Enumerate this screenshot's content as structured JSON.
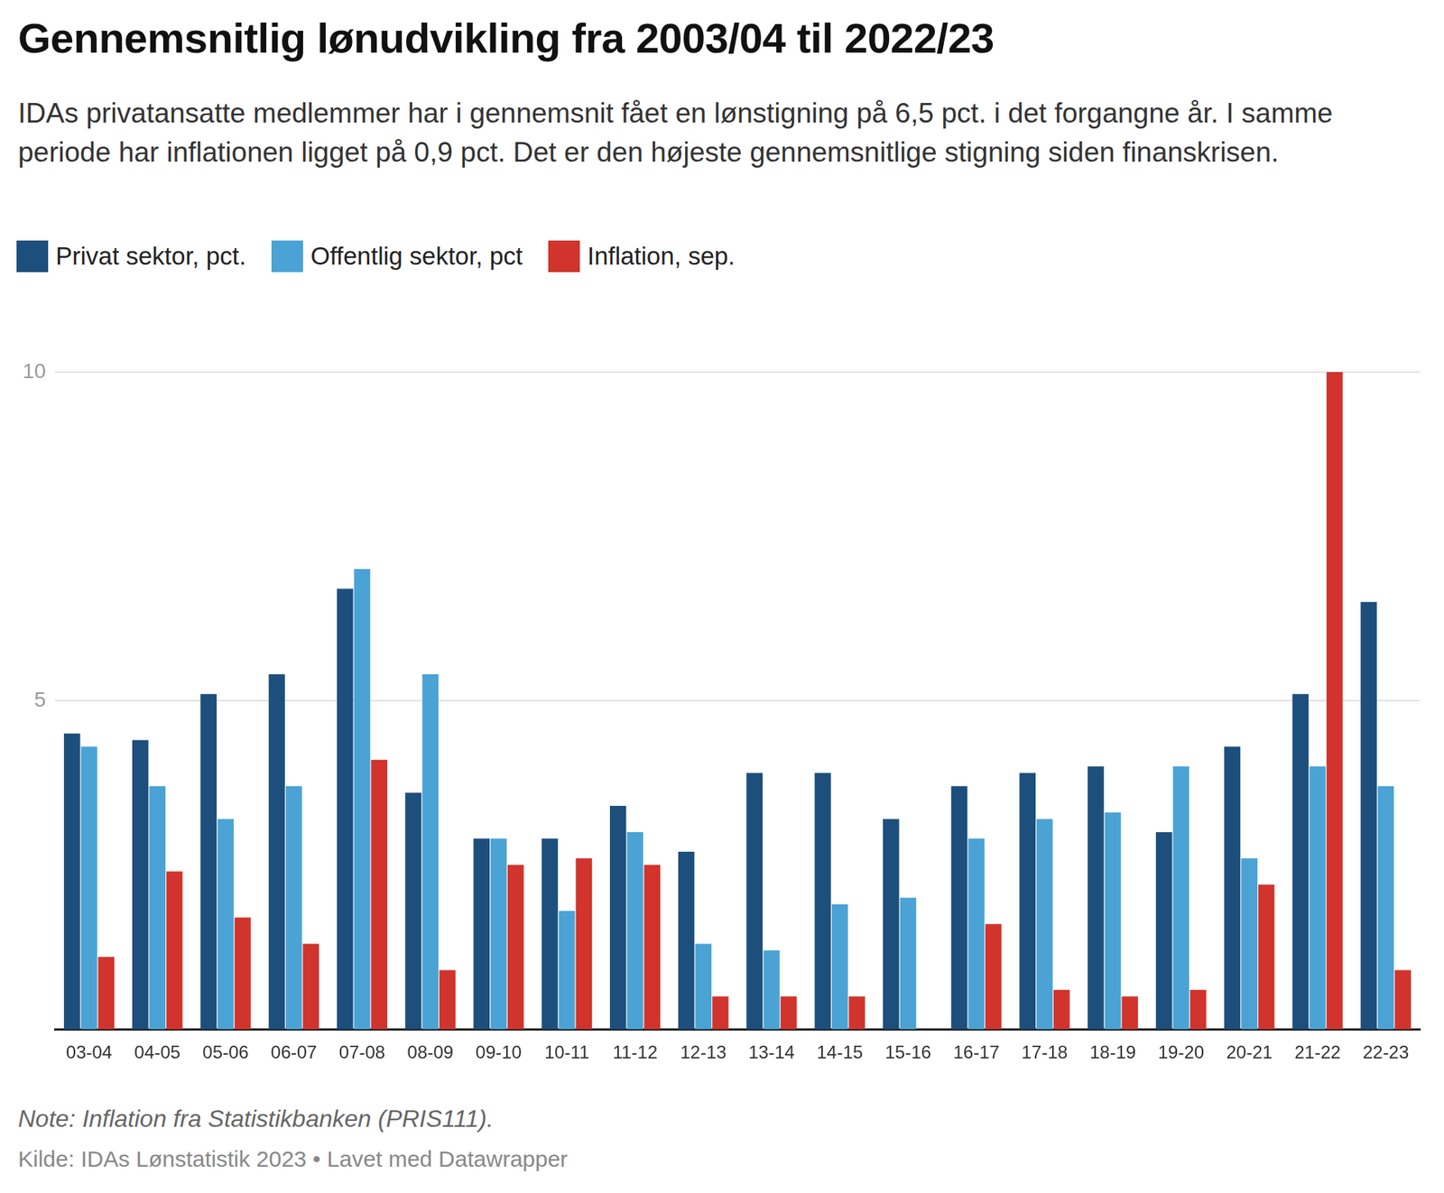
{
  "chart_data": {
    "type": "bar",
    "title": "Gennemsnitlig lønudvikling fra 2003/04 til 2022/23",
    "subtitle": "IDAs privatansatte medlemmer har i gennemsnit fået en lønstigning på 6,5 pct. i det forgangne år. I samme periode har inflationen ligget på 0,9 pct. Det er den højeste gennemsnitlige stigning siden finanskrisen.",
    "note": "Note: Inflation fra Statistikbanken (PRIS111).",
    "source": "Kilde: IDAs Lønstatistik 2023 • Lavet med Datawrapper",
    "categories": [
      "03-04",
      "04-05",
      "05-06",
      "06-07",
      "07-08",
      "08-09",
      "09-10",
      "10-11",
      "11-12",
      "12-13",
      "13-14",
      "14-15",
      "15-16",
      "16-17",
      "17-18",
      "18-19",
      "19-20",
      "20-21",
      "21-22",
      "22-23"
    ],
    "series": [
      {
        "name": "Privat sektor, pct.",
        "color": "#1d4f7c",
        "values": [
          4.5,
          4.4,
          5.1,
          5.4,
          6.7,
          3.6,
          2.9,
          2.9,
          3.4,
          2.7,
          3.9,
          3.9,
          3.2,
          3.7,
          3.9,
          4.0,
          3.0,
          4.3,
          5.1,
          6.5
        ]
      },
      {
        "name": "Offentlig sektor, pct",
        "color": "#4aa3d4",
        "values": [
          4.3,
          3.7,
          3.2,
          3.7,
          7.0,
          5.4,
          2.9,
          1.8,
          3.0,
          1.3,
          1.2,
          1.9,
          2.0,
          2.9,
          3.2,
          3.3,
          4.0,
          2.6,
          4.0,
          3.7
        ]
      },
      {
        "name": "Inflation, sep.",
        "color": "#d0342c",
        "values": [
          1.1,
          2.4,
          1.7,
          1.3,
          4.1,
          0.9,
          2.5,
          2.6,
          2.5,
          0.5,
          0.5,
          0.5,
          0,
          1.6,
          0.6,
          0.5,
          0.6,
          2.2,
          10.0,
          0.9
        ]
      }
    ],
    "ylim": [
      0,
      10
    ],
    "yticks": [
      5,
      10
    ],
    "grid": true,
    "legend": "top-left"
  }
}
